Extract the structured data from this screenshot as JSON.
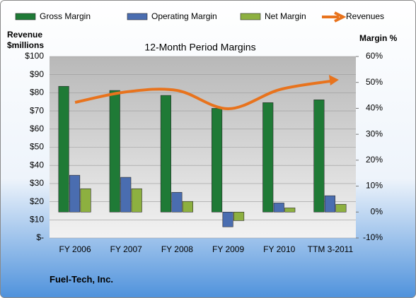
{
  "chart_data": {
    "type": "bar-line",
    "title": "12-Month Period Margins",
    "y_label": "Revenue $millions",
    "y2_label": "Margin %",
    "footer": "Fuel-Tech, Inc.",
    "categories": [
      "FY 2006",
      "FY 2007",
      "FY 2008",
      "FY 2009",
      "FY 2010",
      "TTM 3-2011"
    ],
    "series": [
      {
        "name": "Gross Margin",
        "type": "bar",
        "axis": "y2",
        "color": "#1f7a36",
        "values": [
          48.5,
          46.9,
          45,
          40,
          42.2,
          43.3
        ]
      },
      {
        "name": "Operating Margin",
        "type": "bar",
        "axis": "y2",
        "color": "#4a6db0",
        "values": [
          14.2,
          13.4,
          7.6,
          -5.7,
          3.5,
          6.3
        ]
      },
      {
        "name": "Net Margin",
        "type": "bar",
        "axis": "y2",
        "color": "#8db040",
        "values": [
          9,
          9,
          4.1,
          -3.3,
          1.6,
          3
        ]
      },
      {
        "name": "Revenues",
        "type": "line",
        "color": "#e8731d",
        "values": [
          74.7,
          80.5,
          81.3,
          71.2,
          81.7,
          86.4
        ]
      }
    ],
    "ylim": [
      0,
      100
    ],
    "yticks": [
      {
        "value": 0,
        "label": "$-"
      },
      {
        "value": 10,
        "label": "$10"
      },
      {
        "value": 20,
        "label": "$20"
      },
      {
        "value": 30,
        "label": "$30"
      },
      {
        "value": 40,
        "label": "$40"
      },
      {
        "value": 50,
        "label": "$50"
      },
      {
        "value": 60,
        "label": "$60"
      },
      {
        "value": 70,
        "label": "$70"
      },
      {
        "value": 80,
        "label": "$80"
      },
      {
        "value": 90,
        "label": "$90"
      },
      {
        "value": 100,
        "label": "$100"
      }
    ],
    "y2lim": [
      -10,
      60
    ],
    "y2ticks": [
      {
        "value": -10,
        "label": "-10%"
      },
      {
        "value": 0,
        "label": "0%"
      },
      {
        "value": 10,
        "label": "10%"
      },
      {
        "value": 20,
        "label": "20%"
      },
      {
        "value": 30,
        "label": "30%"
      },
      {
        "value": 40,
        "label": "40%"
      },
      {
        "value": 50,
        "label": "50%"
      },
      {
        "value": 60,
        "label": "60%"
      }
    ],
    "grid": true,
    "legend": "top"
  }
}
